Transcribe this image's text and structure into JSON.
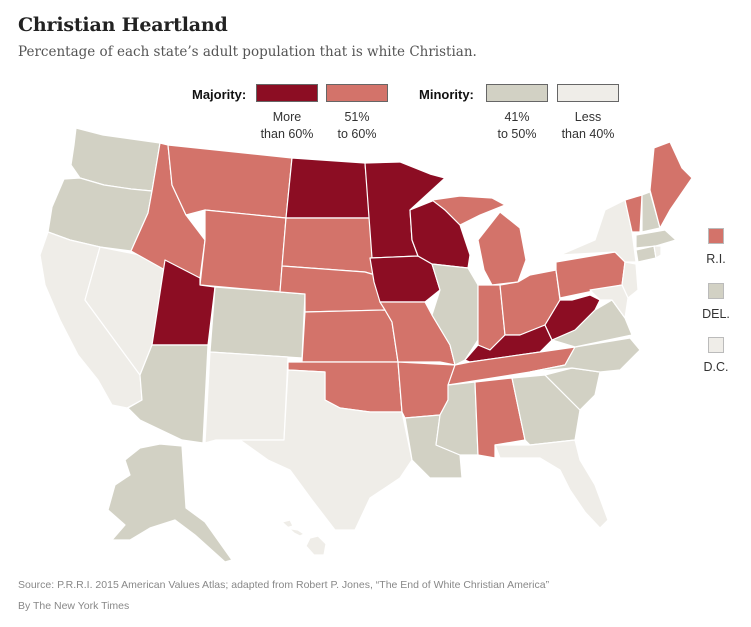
{
  "header": {
    "title": "Christian Heartland",
    "subtitle": "Percentage of each state’s adult population that is white Christian."
  },
  "legend": {
    "majority_label": "Majority:",
    "minority_label": "Minority:",
    "categories": [
      {
        "key": "more60",
        "label": "More\nthan 60%",
        "color": "#8c0d23"
      },
      {
        "key": "51to60",
        "label": "51%\nto 60%",
        "color": "#d3736a"
      },
      {
        "key": "41to50",
        "label": "41%\nto 50%",
        "color": "#d2d1c4"
      },
      {
        "key": "less40",
        "label": "Less\nthan 40%",
        "color": "#efede8"
      }
    ]
  },
  "small_states": [
    {
      "name": "R.I.",
      "category": "51to60"
    },
    {
      "name": "DEL.",
      "category": "41to50"
    },
    {
      "name": "D.C.",
      "category": "less40"
    }
  ],
  "states": {
    "WA": "41to50",
    "OR": "41to50",
    "CA": "less40",
    "NV": "less40",
    "ID": "51to60",
    "MT": "51to60",
    "WY": "51to60",
    "UT": "more60",
    "AZ": "41to50",
    "CO": "41to50",
    "NM": "less40",
    "ND": "more60",
    "SD": "51to60",
    "NE": "51to60",
    "KS": "51to60",
    "OK": "51to60",
    "TX": "less40",
    "MN": "more60",
    "IA": "more60",
    "MO": "51to60",
    "AR": "51to60",
    "LA": "41to50",
    "WI": "more60",
    "IL": "41to50",
    "MI": "51to60",
    "IN": "51to60",
    "OH": "51to60",
    "KY": "more60",
    "TN": "51to60",
    "MS": "41to50",
    "AL": "51to60",
    "GA": "41to50",
    "FL": "less40",
    "SC": "41to50",
    "NC": "41to50",
    "VA": "41to50",
    "WV": "more60",
    "PA": "51to60",
    "NY": "less40",
    "NJ": "less40",
    "MD": "less40",
    "CT": "41to50",
    "MA": "41to50",
    "VT": "51to60",
    "NH": "41to50",
    "ME": "51to60",
    "AK": "41to50",
    "HI": "less40"
  },
  "footer": {
    "source": "Source: P.R.R.I. 2015 American Values Atlas; adapted from Robert P. Jones, “The End of White Christian America”",
    "byline": "By The New York Times"
  }
}
